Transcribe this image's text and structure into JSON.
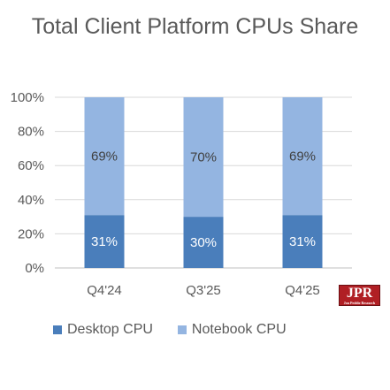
{
  "chart_data": {
    "type": "bar",
    "stacked": true,
    "title": "Total Client Platform CPUs Share",
    "categories": [
      "Q4'24",
      "Q3'25",
      "Q4'25"
    ],
    "series": [
      {
        "name": "Desktop CPU",
        "values": [
          31,
          30,
          31
        ],
        "labels": [
          "31%",
          "30%",
          "31%"
        ],
        "color": "#4a7ebb"
      },
      {
        "name": "Notebook CPU",
        "values": [
          69,
          70,
          69
        ],
        "labels": [
          "69%",
          "70%",
          "69%"
        ],
        "color": "#94b5e1"
      }
    ],
    "ylim": [
      0,
      100
    ],
    "yticks": [
      "0%",
      "20%",
      "40%",
      "60%",
      "80%",
      "100%"
    ],
    "grid": true,
    "legend_position": "bottom"
  },
  "logo": {
    "text": "JPR",
    "subtext": "Jon Peddie Research"
  }
}
